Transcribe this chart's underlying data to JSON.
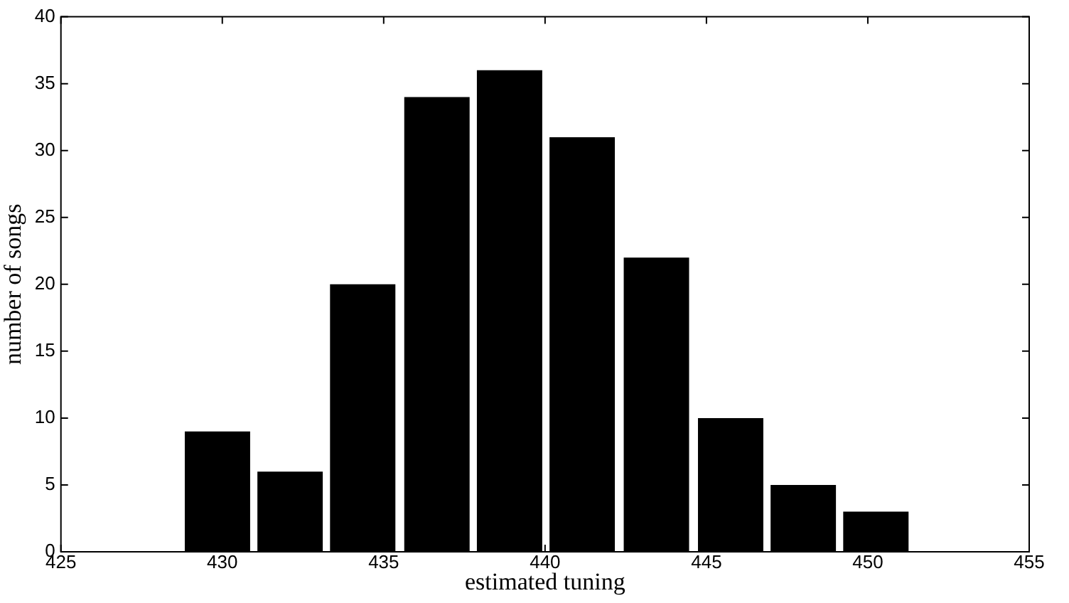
{
  "chart_data": {
    "type": "histogram",
    "xlabel": "estimated tuning",
    "ylabel": "number of songs",
    "bins": [
      428.7,
      431.0,
      433.2,
      435.5,
      437.8,
      440.0,
      442.3,
      444.6,
      446.9,
      449.1,
      451.4
    ],
    "values": [
      9,
      6,
      20,
      34,
      36,
      31,
      22,
      10,
      5,
      3
    ],
    "color": "#000000",
    "xlim": [
      425,
      455
    ],
    "xticks": [
      425,
      430,
      435,
      440,
      445,
      450,
      455
    ],
    "ylim": [
      0,
      40
    ],
    "yticks": [
      0,
      5,
      10,
      15,
      20,
      25,
      30,
      35,
      40
    ],
    "grid": false,
    "legend": false
  }
}
